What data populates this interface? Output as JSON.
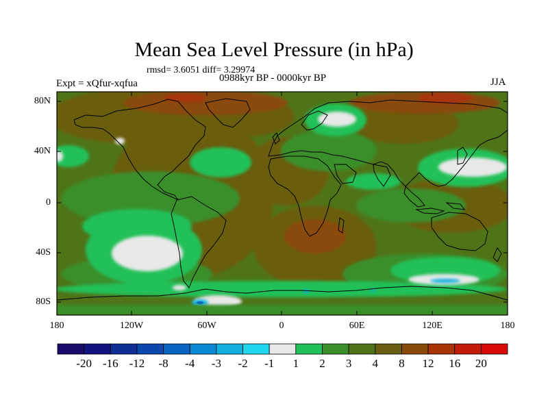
{
  "title": "Mean Sea Level Pressure (in hPa)",
  "subtitle_stats": "rmsd= 3.6051 diff= 3.29974",
  "subtitle_period": "0988kyr BP - 0000kyr BP",
  "experiment": "Expt = xQfur-xqfua",
  "season": "JJA",
  "lat_labels": [
    "80N",
    "40N",
    "0",
    "40S",
    "80S"
  ],
  "lon_labels": [
    "180",
    "120W",
    "60W",
    "0",
    "60E",
    "120E",
    "180"
  ],
  "colorbar": {
    "labels": [
      "-20",
      "-16",
      "-12",
      "-8",
      "-4",
      "-3",
      "-2",
      "-1",
      "1",
      "2",
      "3",
      "4",
      "8",
      "12",
      "16",
      "20"
    ],
    "colors": [
      "#1a0a6b",
      "#13137f",
      "#0e2e96",
      "#0b48ae",
      "#0a64c4",
      "#0b88d2",
      "#10b0df",
      "#20d8ee",
      "#e8e8e8",
      "#22c058",
      "#3a8f2a",
      "#4f7418",
      "#6a5d10",
      "#8a4a0c",
      "#a83408",
      "#c21c06",
      "#d80a06"
    ]
  }
}
